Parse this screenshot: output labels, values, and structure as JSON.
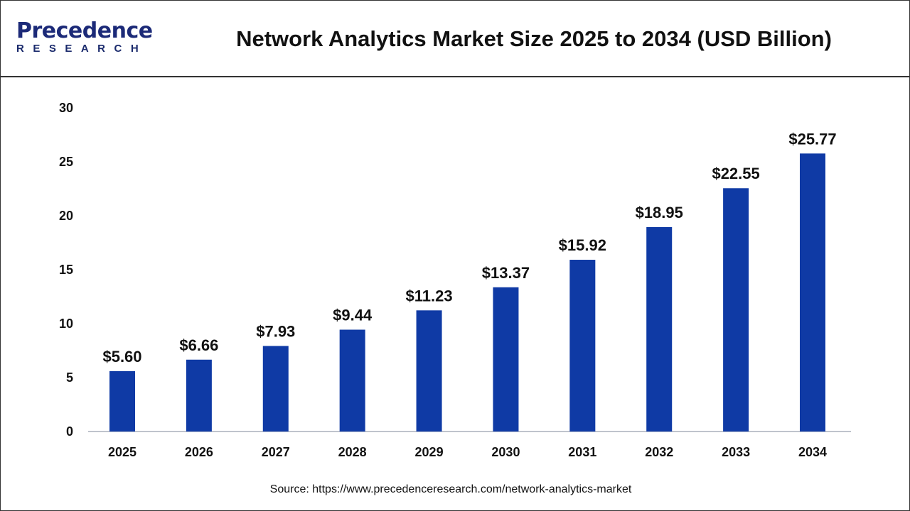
{
  "logo": {
    "text_main": "Precedence",
    "text_sub": "RESEARCH"
  },
  "chart_data": {
    "type": "bar",
    "title": "Network Analytics Market Size 2025 to 2034 (USD Billion)",
    "categories": [
      "2025",
      "2026",
      "2027",
      "2028",
      "2029",
      "2030",
      "2031",
      "2032",
      "2033",
      "2034"
    ],
    "values": [
      5.6,
      6.66,
      7.93,
      9.44,
      11.23,
      13.37,
      15.92,
      18.95,
      22.55,
      25.77
    ],
    "data_labels": [
      "$5.60",
      "$6.66",
      "$7.93",
      "$9.44",
      "$11.23",
      "$13.37",
      "$15.92",
      "$18.95",
      "$22.55",
      "$25.77"
    ],
    "xlabel": "",
    "ylabel": "",
    "ylim": [
      0,
      30
    ],
    "yticks": [
      "0",
      "5",
      "10",
      "15",
      "20",
      "25",
      "30"
    ],
    "grid": false,
    "bar_color": "#0f3aa5"
  },
  "source": "Source: https://www.precedenceresearch.com/network-analytics-market"
}
